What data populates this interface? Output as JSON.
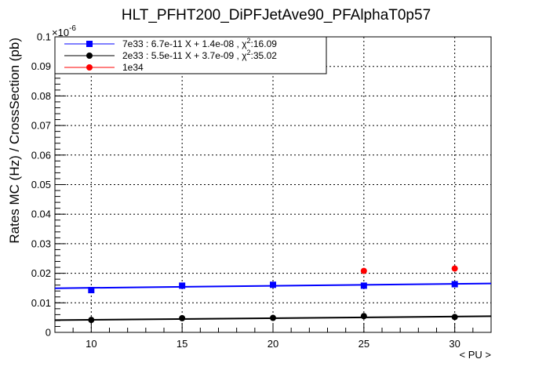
{
  "chart_data": {
    "type": "scatter",
    "title": "HLT_PFHT200_DiPFJetAve90_PFAlphaT0p57",
    "xlabel": "< PU >",
    "ylabel": "Rates MC (Hz) / CrossSection (pb)",
    "y_exponent_label": "×10",
    "y_exponent_power": "-6",
    "xlim": [
      8,
      32
    ],
    "ylim": [
      0,
      0.1
    ],
    "x_ticks": [
      10,
      15,
      20,
      25,
      30
    ],
    "x_tick_labels": [
      "10",
      "15",
      "20",
      "25",
      "30"
    ],
    "y_ticks": [
      0,
      0.01,
      0.02,
      0.03,
      0.04,
      0.05,
      0.06,
      0.07,
      0.08,
      0.09,
      0.1
    ],
    "y_tick_labels": [
      "0",
      "0.01",
      "0.02",
      "0.03",
      "0.04",
      "0.05",
      "0.06",
      "0.07",
      "0.08",
      "0.09",
      "0.1"
    ],
    "grid": true,
    "legend_position": "top-left",
    "series": [
      {
        "name": "7e33 : 6.7e-11 X + 1.4e-08 , χ",
        "name_sup": "2",
        "name_tail": ":16.09",
        "color": "#0000ff",
        "marker": "square",
        "x": [
          10,
          15,
          20,
          25,
          30
        ],
        "y": [
          0.0143,
          0.0158,
          0.0161,
          0.0158,
          0.0163
        ],
        "fit": {
          "slope": 6.7e-05,
          "intercept": 0.0144
        }
      },
      {
        "name": "2e33 : 5.5e-11 X + 3.7e-09 , χ",
        "name_sup": "2",
        "name_tail": ":35.02",
        "color": "#000000",
        "marker": "circle",
        "x": [
          10,
          15,
          20,
          25,
          30
        ],
        "y": [
          0.0042,
          0.0048,
          0.0049,
          0.0055,
          0.0052
        ],
        "fit": {
          "slope": 5.5e-05,
          "intercept": 0.0037
        }
      },
      {
        "name": "1e34",
        "name_sup": "",
        "name_tail": "",
        "color": "#ff0000",
        "marker": "circle",
        "x": [
          25,
          30
        ],
        "y": [
          0.0208,
          0.0216
        ],
        "fit": null
      }
    ]
  }
}
